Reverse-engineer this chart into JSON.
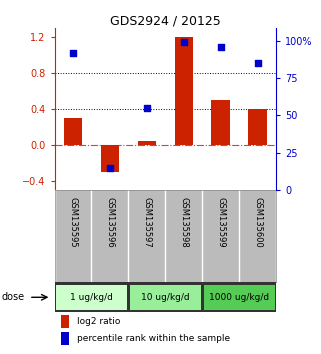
{
  "title": "GDS2924 / 20125",
  "samples": [
    "GSM135595",
    "GSM135596",
    "GSM135597",
    "GSM135598",
    "GSM135599",
    "GSM135600"
  ],
  "log2_ratio": [
    0.3,
    -0.3,
    0.05,
    1.2,
    0.5,
    0.4
  ],
  "percentile_rank": [
    92,
    15,
    55,
    99,
    96,
    85
  ],
  "bar_color": "#cc2200",
  "dot_color": "#0000cc",
  "ylim_left": [
    -0.5,
    1.3
  ],
  "yticks_left": [
    -0.4,
    0.0,
    0.4,
    0.8,
    1.2
  ],
  "ylim_right": [
    0,
    108.33
  ],
  "yticks_right": [
    0,
    25,
    50,
    75,
    100
  ],
  "ytick_labels_right": [
    "0",
    "25",
    "50",
    "75",
    "100%"
  ],
  "hline_y": [
    0.4,
    0.8
  ],
  "dose_groups": [
    {
      "label": "1 ug/kg/d",
      "indices": [
        0,
        1
      ],
      "color": "#ccffcc"
    },
    {
      "label": "10 ug/kg/d",
      "indices": [
        2,
        3
      ],
      "color": "#99ee99"
    },
    {
      "label": "1000 ug/kg/d",
      "indices": [
        4,
        5
      ],
      "color": "#55cc55"
    }
  ],
  "dose_label": "dose",
  "legend_bar_label": "log2 ratio",
  "legend_dot_label": "percentile rank within the sample",
  "background_color": "#ffffff",
  "plot_bg_color": "#ffffff",
  "zero_line_color": "#cc4444",
  "dotted_line_color": "#000000",
  "bar_width": 0.5,
  "label_bg_color": "#bbbbbb",
  "label_sep_color": "#ffffff"
}
